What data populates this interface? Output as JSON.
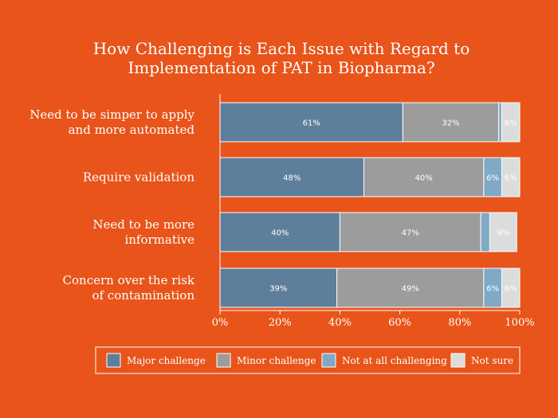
{
  "chart_data": {
    "type": "bar",
    "orientation": "horizontal",
    "stacked": true,
    "title": "How Challenging is Each Issue with Regard to Implementation of PAT in Biopharma?",
    "title_lines": [
      "How Challenging is Each Issue with Regard to",
      "Implementation of PAT in Biopharma?"
    ],
    "categories": [
      [
        "Need to be simper to apply",
        "and more automated"
      ],
      [
        "Require validation"
      ],
      [
        "Need to be more",
        "informative"
      ],
      [
        "Concern over the risk",
        "of contamination"
      ]
    ],
    "series": [
      {
        "name": "Major challenge",
        "color": "#5e7f9c",
        "values": [
          61,
          48,
          40,
          39
        ],
        "labels": [
          "61%",
          "48%",
          "40%",
          "39%"
        ]
      },
      {
        "name": "Minor challenge",
        "color": "#9c9c9c",
        "values": [
          32,
          40,
          47,
          49
        ],
        "labels": [
          "32%",
          "40%",
          "47%",
          "49%"
        ]
      },
      {
        "name": "Not at all challenging",
        "color": "#7fa9c6",
        "values": [
          1,
          6,
          3,
          6
        ],
        "labels": [
          "",
          "6%",
          "",
          "6%"
        ]
      },
      {
        "name": "Not sure",
        "color": "#dcdcdc",
        "values": [
          6,
          6,
          9,
          6
        ],
        "labels": [
          "6%",
          "6%",
          "9%",
          "6%"
        ]
      }
    ],
    "xlim": [
      0,
      100
    ],
    "xticks": [
      "0%",
      "20%",
      "40%",
      "60%",
      "80%",
      "100%"
    ],
    "legend_position": "bottom",
    "grid": false
  }
}
